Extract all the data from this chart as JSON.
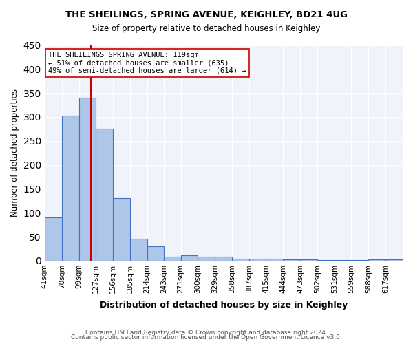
{
  "title1": "THE SHEILINGS, SPRING AVENUE, KEIGHLEY, BD21 4UG",
  "title2": "Size of property relative to detached houses in Keighley",
  "xlabel": "Distribution of detached houses by size in Keighley",
  "ylabel": "Number of detached properties",
  "footer1": "Contains HM Land Registry data © Crown copyright and database right 2024.",
  "footer2": "Contains public sector information licensed under the Open Government Licence v3.0.",
  "bin_labels": [
    "41sqm",
    "70sqm",
    "99sqm",
    "127sqm",
    "156sqm",
    "185sqm",
    "214sqm",
    "243sqm",
    "271sqm",
    "300sqm",
    "329sqm",
    "358sqm",
    "387sqm",
    "415sqm",
    "444sqm",
    "473sqm",
    "502sqm",
    "531sqm",
    "559sqm",
    "588sqm",
    "617sqm"
  ],
  "bin_edges": [
    41,
    70,
    99,
    127,
    156,
    185,
    214,
    243,
    271,
    300,
    329,
    358,
    387,
    415,
    444,
    473,
    502,
    531,
    559,
    588,
    617,
    646
  ],
  "bar_heights": [
    90,
    303,
    340,
    275,
    131,
    46,
    30,
    9,
    11,
    9,
    8,
    4,
    4,
    4,
    3,
    3,
    2,
    2,
    1,
    3,
    3
  ],
  "bar_color": "#aec6e8",
  "bar_edge_color": "#4472c4",
  "property_size": 119,
  "red_line_color": "#cc0000",
  "annotation_text1": "THE SHEILINGS SPRING AVENUE: 119sqm",
  "annotation_text2": "← 51% of detached houses are smaller (635)",
  "annotation_text3": "49% of semi-detached houses are larger (614) →",
  "annotation_box_edge": "#cc0000",
  "ylim": [
    0,
    450
  ],
  "yticks": [
    0,
    50,
    100,
    150,
    200,
    250,
    300,
    350,
    400,
    450
  ],
  "background_color": "#f0f4fa",
  "grid_color": "#ffffff",
  "fig_bg": "#ffffff"
}
